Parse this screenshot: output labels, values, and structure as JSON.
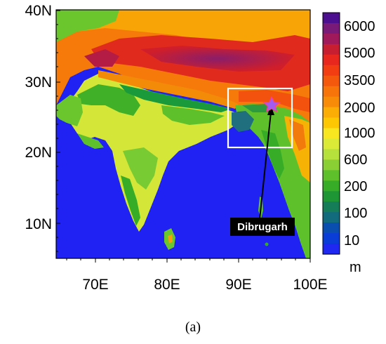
{
  "map": {
    "lat_ticks": [
      "40N",
      "30N",
      "20N",
      "10N"
    ],
    "lon_ticks": [
      "70E",
      "80E",
      "90E",
      "100E"
    ],
    "colorbar": {
      "labels": [
        "6000",
        "5000",
        "3500",
        "2000",
        "1000",
        "600",
        "200",
        "100",
        "10"
      ],
      "unit": "m",
      "colors": [
        "#4b0f8f",
        "#7a1a78",
        "#a0195a",
        "#c81e32",
        "#e8281e",
        "#f23c12",
        "#f4580c",
        "#f6740a",
        "#f88c08",
        "#fbad06",
        "#fdc704",
        "#f7e620",
        "#dbe937",
        "#b6e13c",
        "#8ad035",
        "#5ec12c",
        "#37ad27",
        "#1f9636",
        "#157d58",
        "#126a7d",
        "#0a4fb0",
        "#0a3cd8",
        "#1e28f0"
      ]
    },
    "marker": {
      "label": "Dibrugarh",
      "symbol": "star"
    },
    "region_box": {
      "shape": "rectangle",
      "color": "#ffffff"
    }
  },
  "caption": "(a)"
}
